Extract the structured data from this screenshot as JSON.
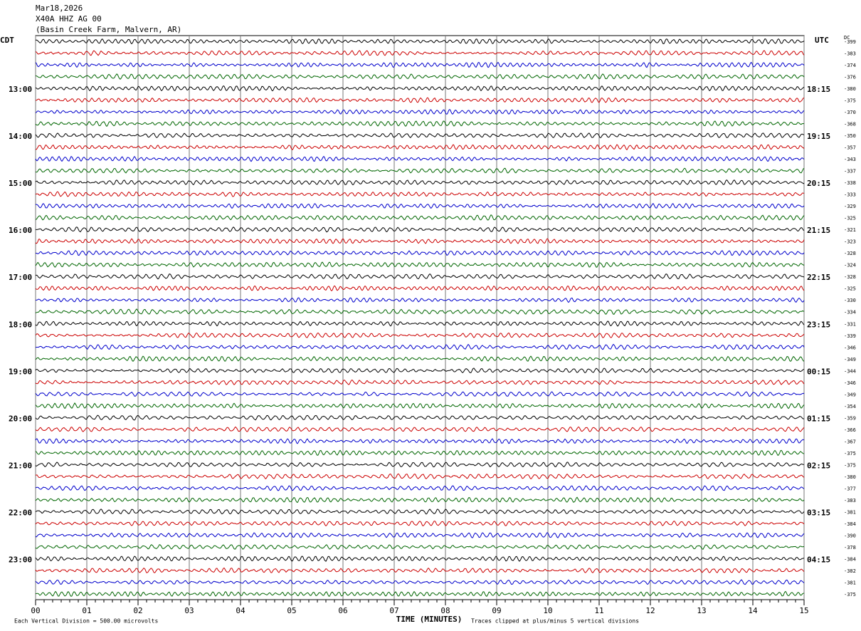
{
  "header": {
    "date": "Mar18,2026",
    "station": "X40A HHZ AG 00",
    "location": "(Basin Creek Farm, Malvern, AR)"
  },
  "left_zone": "CDT",
  "right_zone": "UTC",
  "dc_header": "DC",
  "left_labels": [
    "13:00",
    "14:00",
    "15:00",
    "16:00",
    "17:00",
    "18:00",
    "19:00",
    "20:00",
    "21:00",
    "22:00",
    "23:00"
  ],
  "right_labels": [
    "18:15",
    "19:15",
    "20:15",
    "21:15",
    "22:15",
    "23:15",
    "00:15",
    "01:15",
    "02:15",
    "03:15",
    "04:15"
  ],
  "dc_values": [
    -399,
    -383,
    -374,
    -376,
    -380,
    -375,
    -370,
    -368,
    -350,
    -357,
    -343,
    -337,
    -338,
    -333,
    -329,
    -325,
    -321,
    -323,
    -328,
    -324,
    -328,
    -325,
    -330,
    -334,
    -331,
    -339,
    -346,
    -349,
    -344,
    -346,
    -349,
    -354,
    -359,
    -366,
    -367,
    -375,
    -375,
    -380,
    -377,
    -383,
    -381,
    -384,
    -390,
    -378,
    -384,
    -382,
    -381,
    -375
  ],
  "trace_colors": [
    "#000000",
    "#cc0000",
    "#0000cc",
    "#006600"
  ],
  "xlim": [
    0,
    15
  ],
  "xticks": [
    {
      "value": 0,
      "label": "00"
    },
    {
      "value": 1,
      "label": "01"
    },
    {
      "value": 2,
      "label": "02"
    },
    {
      "value": 3,
      "label": "03"
    },
    {
      "value": 4,
      "label": "04"
    },
    {
      "value": 5,
      "label": "05"
    },
    {
      "value": 6,
      "label": "06"
    },
    {
      "value": 7,
      "label": "07"
    },
    {
      "value": 8,
      "label": "08"
    },
    {
      "value": 9,
      "label": "09"
    },
    {
      "value": 10,
      "label": "10"
    },
    {
      "value": 11,
      "label": "11"
    },
    {
      "value": 12,
      "label": "12"
    },
    {
      "value": 13,
      "label": "13"
    },
    {
      "value": 14,
      "label": "14"
    },
    {
      "value": 15,
      "label": "15"
    }
  ],
  "xlabel": "TIME (MINUTES)",
  "scale_note": "Each Vertical Division =  500.00 microvolts",
  "clip_note": "Traces clipped at plus/minus 5 vertical divisions"
}
